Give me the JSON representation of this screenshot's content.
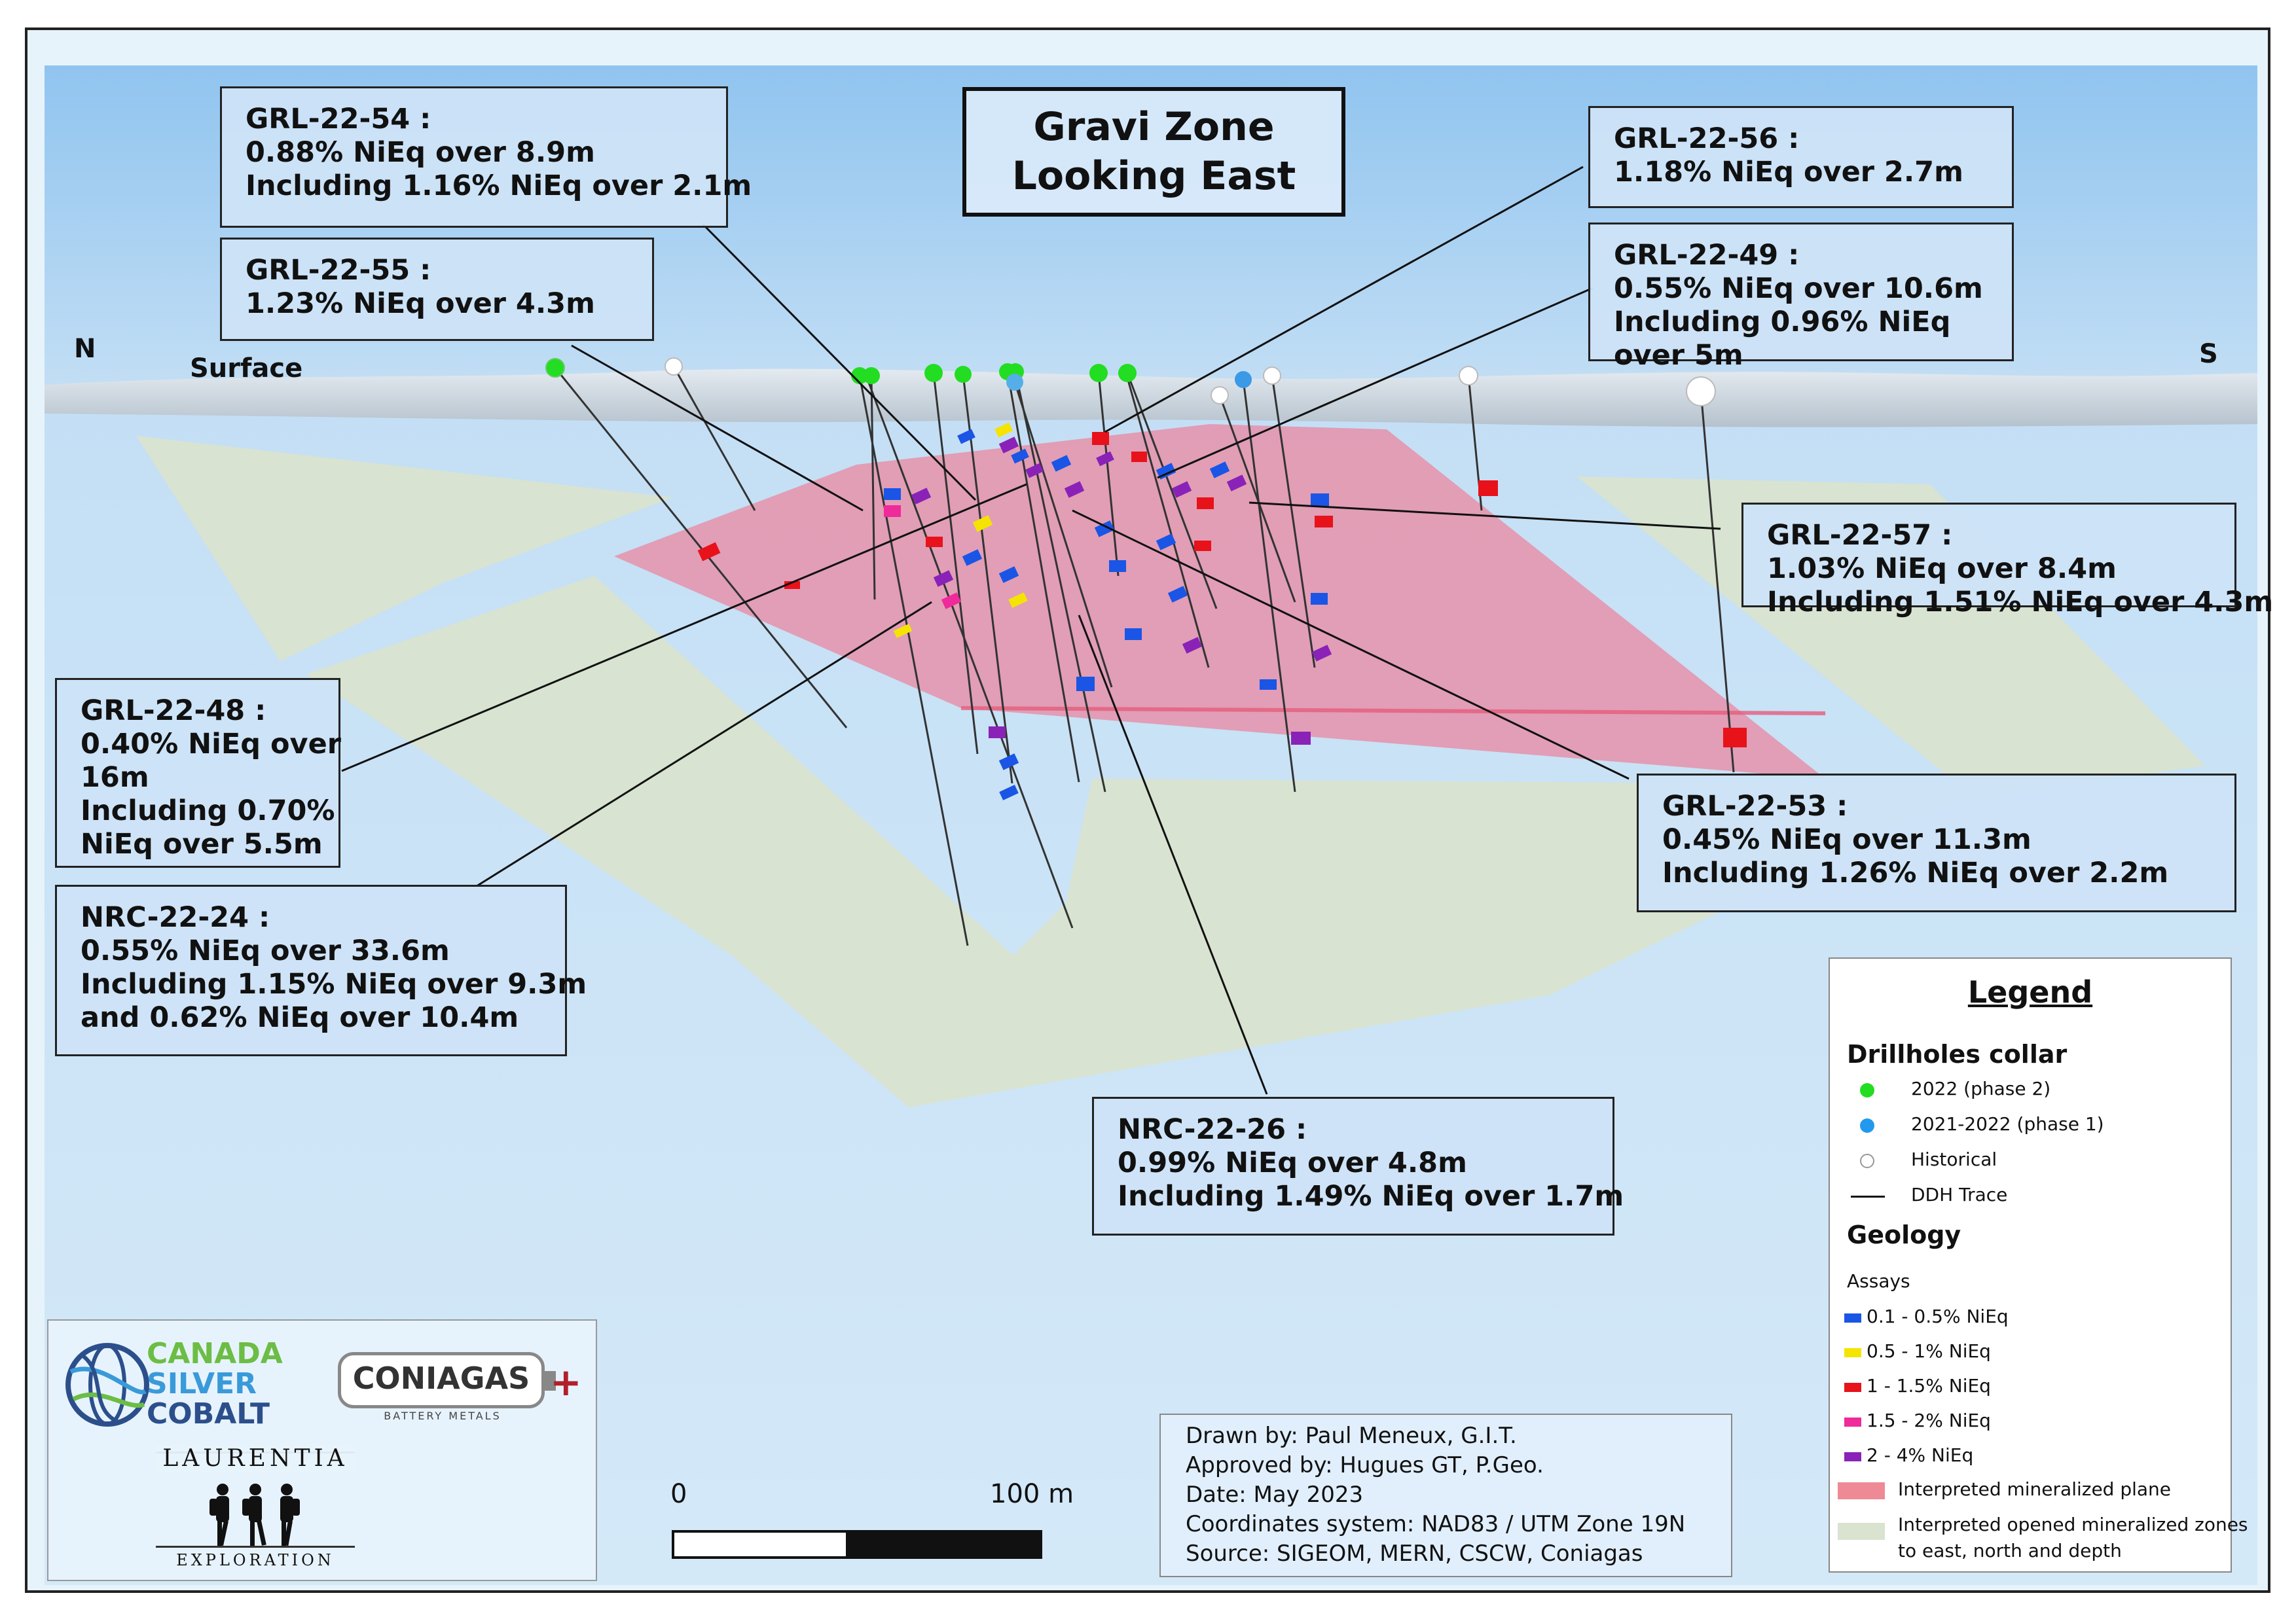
{
  "title": {
    "line1": "Gravi Zone",
    "line2": "Looking East"
  },
  "compass": {
    "north": "N",
    "south": "S"
  },
  "surface_label": "Surface",
  "callouts": {
    "grl_22_54": {
      "name": "GRL-22-54 :",
      "l1": "0.88% NiEq over 8.9m",
      "l2": "Including 1.16% NiEq over 2.1m"
    },
    "grl_22_55": {
      "name": "GRL-22-55 :",
      "l1": "1.23% NiEq over 4.3m"
    },
    "grl_22_56": {
      "name": "GRL-22-56 :",
      "l1": "1.18% NiEq over 2.7m"
    },
    "grl_22_49": {
      "name": "GRL-22-49 :",
      "l1": "0.55% NiEq over 10.6m",
      "l2": "Including 0.96% NiEq",
      "l3": "over 5m"
    },
    "grl_22_57": {
      "name": "GRL-22-57 :",
      "l1": "1.03% NiEq over 8.4m",
      "l2": "Including 1.51% NiEq over 4.3m"
    },
    "grl_22_48": {
      "name": "GRL-22-48 :",
      "l1": "0.40% NiEq over",
      "l2": "16m",
      "l3": "Including 0.70%",
      "l4": "NiEq over 5.5m"
    },
    "grl_22_53": {
      "name": "GRL-22-53 :",
      "l1": "0.45% NiEq over 11.3m",
      "l2": "Including 1.26% NiEq over 2.2m"
    },
    "nrc_22_24": {
      "name": "NRC-22-24 :",
      "l1": "0.55% NiEq over 33.6m",
      "l2": "Including 1.15% NiEq over 9.3m",
      "l3": "and 0.62% NiEq over 10.4m"
    },
    "nrc_22_26": {
      "name": "NRC-22-26 :",
      "l1": "0.99% NiEq over 4.8m",
      "l2": "Including 1.49% NiEq over 1.7m"
    }
  },
  "legend": {
    "title": "Legend",
    "collar_heading": "Drillholes collar",
    "collars": [
      {
        "label": "2022 (phase 2)",
        "color": "#22dd22"
      },
      {
        "label": "2021-2022 (phase 1)",
        "color": "#2299ee"
      },
      {
        "label": "Historical",
        "color": "#ffffff"
      }
    ],
    "trace_label": "DDH Trace",
    "geology_heading": "Geology",
    "assays_heading": "Assays",
    "assays": [
      {
        "label": "0.1 - 0.5% NiEq",
        "color": "#1a55e6"
      },
      {
        "label": "0.5 - 1% NiEq",
        "color": "#f5e400"
      },
      {
        "label": "1 - 1.5% NiEq",
        "color": "#e8121a"
      },
      {
        "label": "1.5 - 2% NiEq",
        "color": "#ef2a9a"
      },
      {
        "label": "2 - 4% NiEq",
        "color": "#8a22b8"
      }
    ],
    "plane_label": "Interpreted mineralized plane",
    "plane_color": "#ee8a96",
    "zones_label_1": "Interpreted opened mineralized zones",
    "zones_label_2": "to east, north and depth",
    "zones_color": "#d9e3cf"
  },
  "info": {
    "drawn_by": "Drawn by: Paul Meneux, G.I.T.",
    "approved_by": "Approved by: Hugues GT, P.Geo.",
    "date": "Date: May 2023",
    "coords": "Coordinates system: NAD83 / UTM Zone 19N",
    "source": "Source: SIGEOM, MERN, CSCW, Coniagas"
  },
  "scale": {
    "min": "0",
    "max": "100 m"
  },
  "logos": {
    "csc_1": "CANADA",
    "csc_2": "SILVER",
    "csc_3": "COBALT",
    "coniagas": "CONIAGAS",
    "coniagas_sub": "BATTERY METALS",
    "laurentia": "LAURENTIA",
    "exploration": "EXPLORATION"
  }
}
